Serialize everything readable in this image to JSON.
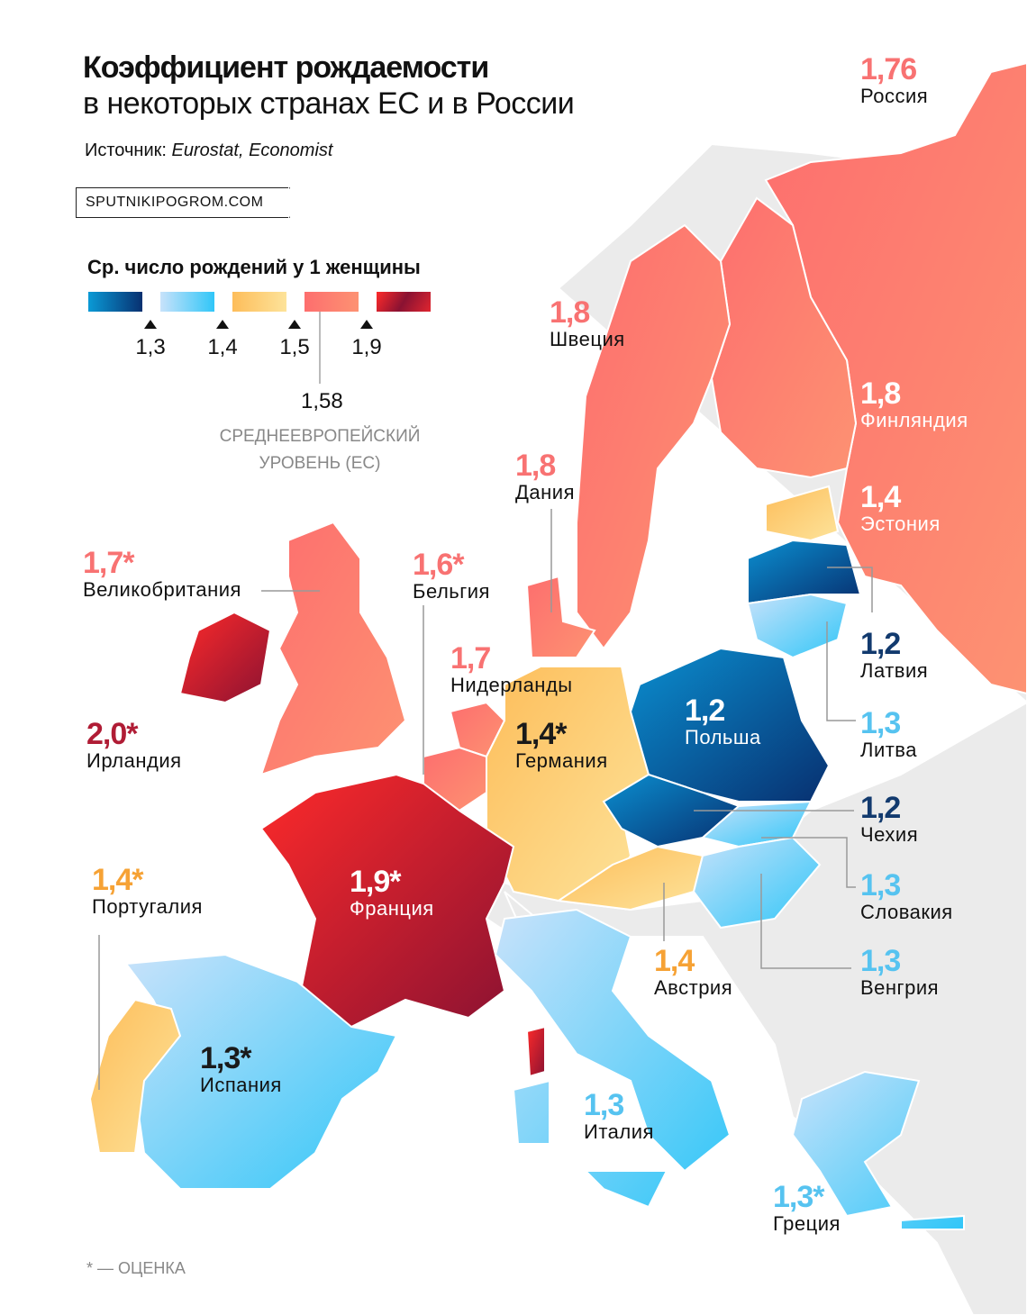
{
  "title": {
    "line1": "Коэффициент рождаемости",
    "line2": "в некоторых странах ЕС и в России"
  },
  "source": {
    "label": "Источник:",
    "value": "Eurostat, Economist"
  },
  "brand": "SPUTNIKIPOGROM.COM",
  "legend": {
    "title": "Ср. число рождений у 1 женщины",
    "ticks": [
      "1,3",
      "1,4",
      "1,5",
      "1,9"
    ],
    "average": {
      "value": "1,58",
      "caption1": "СРЕДНЕЕВРОПЕЙСКИЙ",
      "caption2": "УРОВЕНЬ (ЕС)"
    },
    "colors": [
      "#0a4f95",
      "#7fd0f6",
      "#fdcb78",
      "#fd7f72",
      "#c41e38"
    ]
  },
  "countries": {
    "russia": {
      "value": "1,76",
      "name": "Россия"
    },
    "sweden": {
      "value": "1,8",
      "name": "Швеция"
    },
    "finland": {
      "value": "1,8",
      "name": "Финляндия"
    },
    "denmark": {
      "value": "1,8",
      "name": "Дания"
    },
    "estonia": {
      "value": "1,4",
      "name": "Эстония"
    },
    "uk": {
      "value": "1,7*",
      "name": "Великобритания"
    },
    "belgium": {
      "value": "1,6*",
      "name": "Бельгия"
    },
    "netherlands": {
      "value": "1,7",
      "name": "Нидерланды"
    },
    "latvia": {
      "value": "1,2",
      "name": "Латвия"
    },
    "poland": {
      "value": "1,2",
      "name": "Польша"
    },
    "germany": {
      "value": "1,4*",
      "name": "Германия"
    },
    "ireland": {
      "value": "2,0*",
      "name": "Ирландия"
    },
    "lithuania": {
      "value": "1,3",
      "name": "Литва"
    },
    "czechia": {
      "value": "1,2",
      "name": "Чехия"
    },
    "france": {
      "value": "1,9*",
      "name": "Франция"
    },
    "portugal": {
      "value": "1,4*",
      "name": "Португалия"
    },
    "slovakia": {
      "value": "1,3",
      "name": "Словакия"
    },
    "austria": {
      "value": "1,4",
      "name": "Австрия"
    },
    "hungary": {
      "value": "1,3",
      "name": "Венгрия"
    },
    "spain": {
      "value": "1,3*",
      "name": "Испания"
    },
    "italy": {
      "value": "1,3",
      "name": "Италия"
    },
    "greece": {
      "value": "1,3*",
      "name": "Греция"
    }
  },
  "footnote": "* — ОЦЕНКА"
}
